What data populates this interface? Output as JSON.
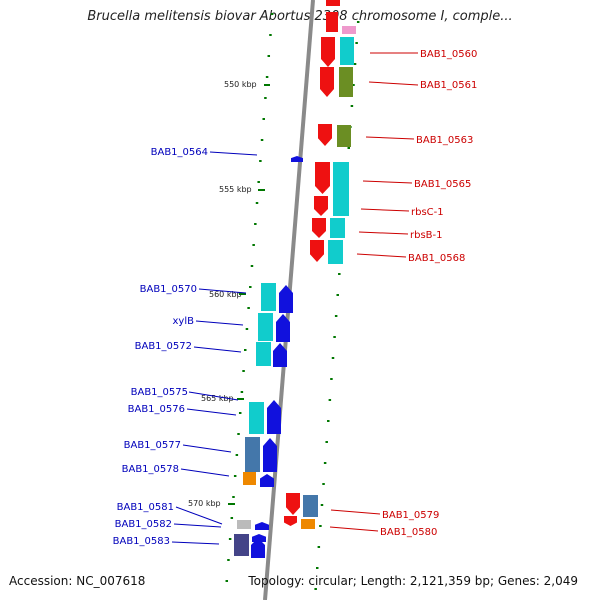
{
  "title": "Brucella melitensis biovar Abortus 2308 chromosome I, comple...",
  "footer": {
    "accession": "Accession: NC_007618",
    "topology": "Topology: circular; Length: 2,121,359 bp; Genes: 2,049"
  },
  "colors": {
    "backbone": "#888888",
    "tick": "#007700",
    "right_label": "#cc0000",
    "left_label": "#0000bb",
    "red": "#ee1111",
    "cyan": "#11cccc",
    "olive": "#6b8e23",
    "blue": "#1111dd",
    "steel": "#4477aa",
    "orange": "#ee8800",
    "gray": "#bbbbbb",
    "purple": "#444488"
  },
  "kbp_marks": [
    {
      "label": "550 kbp"
    },
    {
      "label": "555 kbp"
    },
    {
      "label": "560 kbp"
    },
    {
      "label": "565 kbp"
    },
    {
      "label": "570 kbp"
    }
  ],
  "right_genes": [
    {
      "label": "BAB1_0560",
      "color": "red"
    },
    {
      "label": "BAB1_0561",
      "color": "red"
    },
    {
      "label": "BAB1_0563",
      "color": "red"
    },
    {
      "label": "BAB1_0565",
      "color": "red"
    },
    {
      "label": "rbsC-1",
      "color": "red"
    },
    {
      "label": "rbsB-1",
      "color": "red"
    },
    {
      "label": "BAB1_0568",
      "color": "red"
    },
    {
      "label": "BAB1_0579",
      "color": "red"
    },
    {
      "label": "BAB1_0580",
      "color": "red"
    }
  ],
  "left_genes": [
    {
      "label": "BAB1_0564"
    },
    {
      "label": "BAB1_0570"
    },
    {
      "label": "xylB"
    },
    {
      "label": "BAB1_0572"
    },
    {
      "label": "BAB1_0575"
    },
    {
      "label": "BAB1_0576"
    },
    {
      "label": "BAB1_0577"
    },
    {
      "label": "BAB1_0578"
    },
    {
      "label": "BAB1_0581"
    },
    {
      "label": "BAB1_0582"
    },
    {
      "label": "BAB1_0583"
    }
  ]
}
